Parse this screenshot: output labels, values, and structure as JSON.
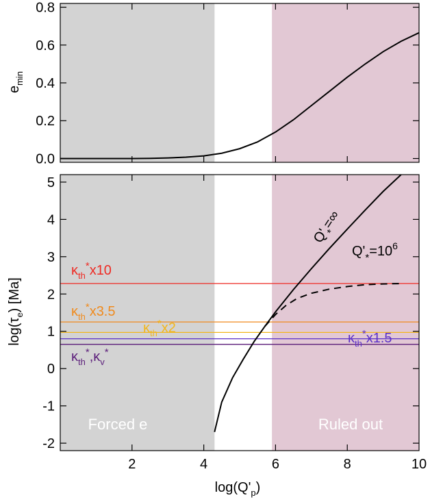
{
  "chart_data": [
    {
      "type": "line",
      "panel": "top",
      "xlim": [
        0,
        10
      ],
      "ylim": [
        -0.02,
        0.82
      ],
      "ylabel": "e",
      "ylabel_sub": "min",
      "xlabel": "",
      "yticks": [
        0.0,
        0.2,
        0.4,
        0.6,
        0.8
      ],
      "ytick_labels": [
        "0.0",
        "0.2",
        "0.4",
        "0.6",
        "0.8"
      ],
      "grid": false,
      "shaded_regions": [
        {
          "x": [
            0,
            4.3
          ],
          "color": "#d3d3d3"
        },
        {
          "x": [
            5.9,
            10
          ],
          "color": "#e2c8d4"
        }
      ],
      "series": [
        {
          "style": "solid",
          "color": "#000000",
          "x": [
            0,
            1,
            2,
            2.5,
            3,
            3.5,
            4,
            4.5,
            5,
            5.5,
            6,
            6.5,
            7,
            7.5,
            8,
            8.5,
            9,
            9.5,
            10
          ],
          "y": [
            0.0,
            0.0,
            0.0,
            0.001,
            0.003,
            0.007,
            0.014,
            0.028,
            0.052,
            0.088,
            0.14,
            0.205,
            0.28,
            0.355,
            0.43,
            0.5,
            0.565,
            0.62,
            0.665
          ]
        }
      ]
    },
    {
      "type": "line",
      "panel": "bottom",
      "xlim": [
        0,
        10
      ],
      "ylim": [
        -2.2,
        5.2
      ],
      "xlabel": "log(Q'p)",
      "ylabel": "log(τe) [Ma]",
      "xticks": [
        2,
        4,
        6,
        8,
        10
      ],
      "xtick_labels": [
        "2",
        "4",
        "6",
        "8",
        "10"
      ],
      "yticks": [
        -2,
        -1,
        0,
        1,
        2,
        3,
        4,
        5
      ],
      "ytick_labels": [
        "-2",
        "-1",
        "0",
        "1",
        "2",
        "3",
        "4",
        "5"
      ],
      "grid": false,
      "shaded_regions": [
        {
          "x": [
            0,
            4.3
          ],
          "color": "#d3d3d3",
          "label": "Forced e"
        },
        {
          "x": [
            5.9,
            10
          ],
          "color": "#e2c8d4",
          "label": "Ruled out"
        }
      ],
      "hlines": [
        {
          "y": 2.28,
          "color": "#ee2b24",
          "label": "κth*x10"
        },
        {
          "y": 1.25,
          "color": "#f08a1c",
          "label": "κth*x3.5"
        },
        {
          "y": 0.97,
          "color": "#f2b61c",
          "label": "κth*x2"
        },
        {
          "y": 0.8,
          "color": "#5a2fc8",
          "label": "κth*x1.5"
        },
        {
          "y": 0.65,
          "color": "#5b1e7a",
          "label": "κth*,κv*"
        }
      ],
      "series": [
        {
          "name": "Q'* = ∞",
          "style": "solid",
          "color": "#000000",
          "x": [
            4.3,
            4.5,
            4.8,
            5.1,
            5.4,
            5.7,
            6.0,
            6.5,
            7.0,
            7.5,
            8.0,
            8.5,
            9.0,
            9.5
          ],
          "y": [
            -1.7,
            -0.9,
            -0.25,
            0.25,
            0.72,
            1.13,
            1.52,
            2.12,
            2.68,
            3.22,
            3.74,
            4.25,
            4.75,
            5.2
          ]
        },
        {
          "name": "Q'* = 10^6",
          "style": "dashed",
          "color": "#000000",
          "x": [
            5.7,
            6.0,
            6.3,
            6.6,
            7.0,
            7.5,
            8.0,
            8.5,
            9.0,
            9.5
          ],
          "y": [
            1.13,
            1.45,
            1.7,
            1.88,
            2.02,
            2.13,
            2.2,
            2.25,
            2.27,
            2.28
          ]
        }
      ]
    }
  ],
  "text": {
    "top_ylabel_main": "e",
    "top_ylabel_sub": "min",
    "bottom_ylabel": "log(τ",
    "bottom_ylabel_sub": "e",
    "bottom_ylabel_end": ") [Ma]",
    "xlabel_main": "log(Q'",
    "xlabel_sub": "p",
    "xlabel_end": ")",
    "forced_label": "Forced e",
    "ruled_label": "Ruled out",
    "kappa": "κ",
    "th": "th",
    "v": "v",
    "star": "*",
    "k10_suffix": "x10",
    "k35_suffix": "x3.5",
    "k2_suffix": "x2",
    "k15_suffix": "x1.5",
    "kboth_sep": ",",
    "qinf_q": "Q'",
    "qinf_sub": "*",
    "qinf_eq": "=∞",
    "q106_q": "Q'",
    "q106_sub": "*",
    "q106_eq": "=10",
    "q106_exp": "6"
  }
}
